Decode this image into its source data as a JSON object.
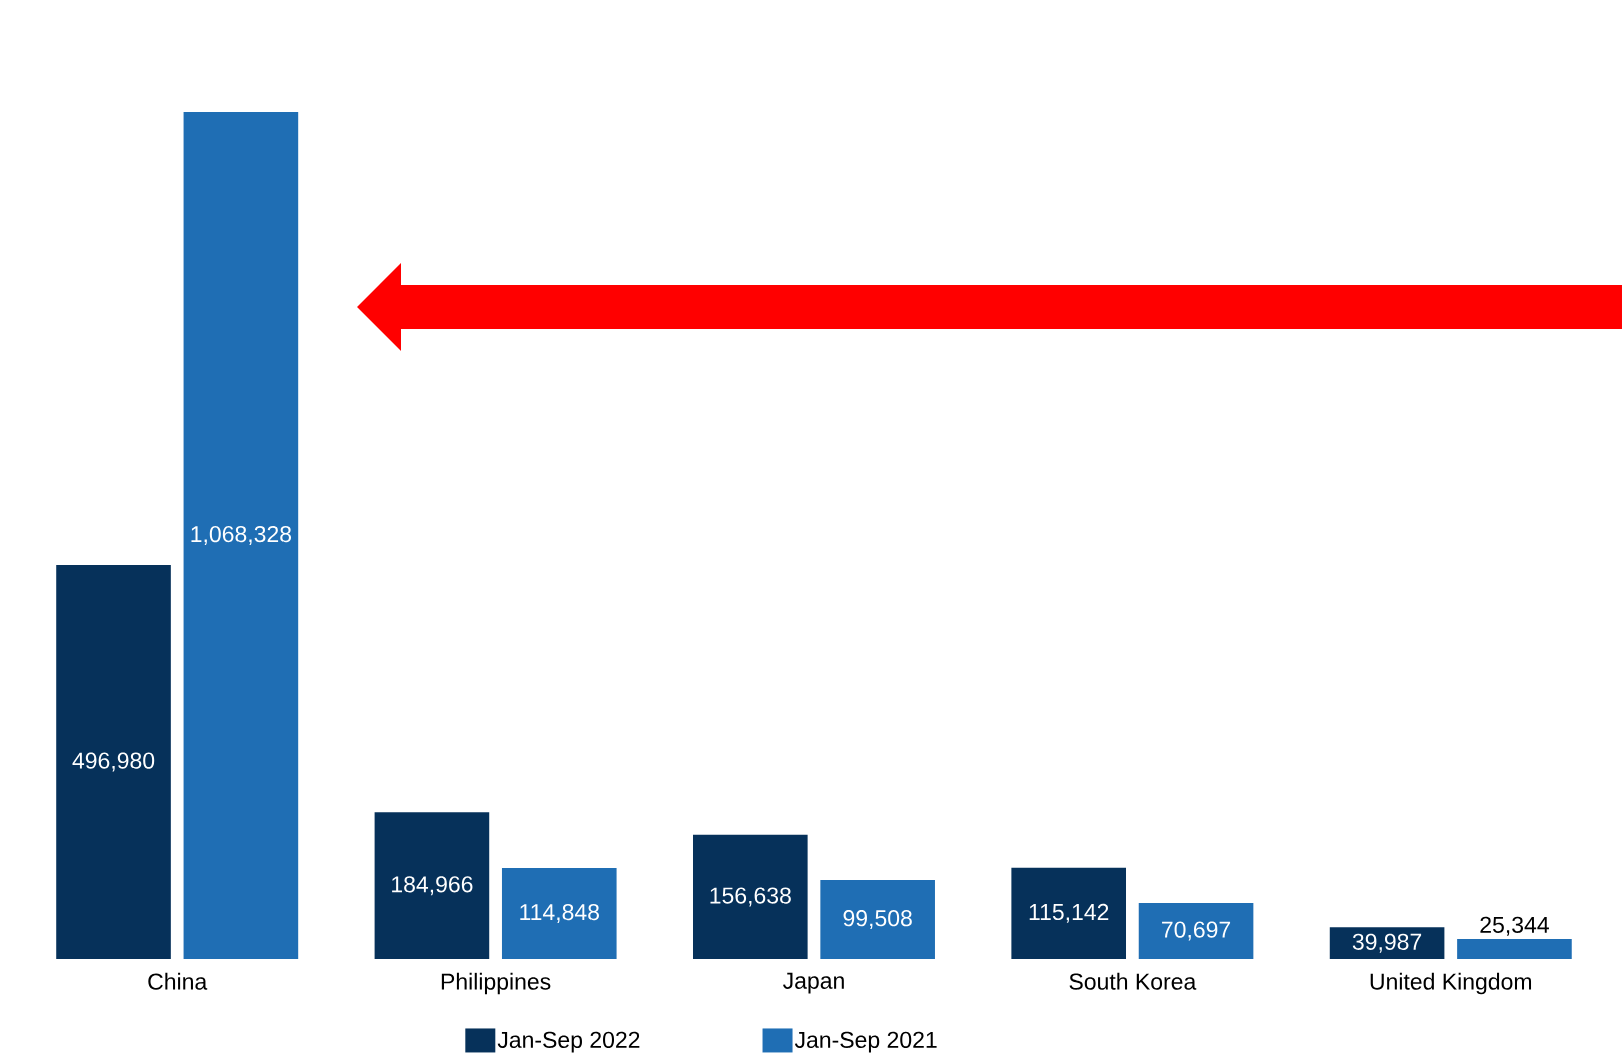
{
  "chart_data": {
    "type": "bar",
    "categories": [
      "China",
      "Philippines",
      "Japan",
      "South Korea",
      "United Kingdom"
    ],
    "series": [
      {
        "name": "Jan-Sep 2022",
        "color": "#06315a",
        "values": [
          496980,
          184966,
          156638,
          115142,
          39987
        ],
        "value_labels": [
          "496,980",
          "184,966",
          "156,638",
          "115,142",
          "39,987"
        ]
      },
      {
        "name": "Jan-Sep 2021",
        "color": "#1f6eb4",
        "values": [
          1068328,
          114848,
          99508,
          70697,
          25344
        ],
        "value_labels": [
          "1,068,328",
          "114,848",
          "99,508",
          "70,697",
          "25,344"
        ]
      }
    ],
    "legend": "bottom"
  }
}
